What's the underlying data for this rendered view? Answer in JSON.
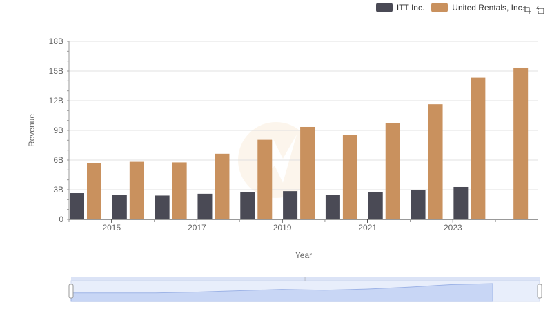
{
  "legend": {
    "items": [
      {
        "label": "ITT Inc.",
        "color": "#4a4a55"
      },
      {
        "label": "United Rentals, Inc.",
        "color": "#c9915e"
      }
    ]
  },
  "toolbox": {
    "zoom_icon": "zoom-icon",
    "restore_icon": "restore-icon"
  },
  "chart_data": {
    "type": "bar",
    "xlabel": "Year",
    "ylabel": "Revenue",
    "categories": [
      "2014",
      "2015",
      "2016",
      "2017",
      "2018",
      "2019",
      "2020",
      "2021",
      "2022",
      "2023",
      "2024"
    ],
    "x_tick_labels": [
      "2015",
      "2017",
      "2019",
      "2021",
      "2023"
    ],
    "y_tick_labels": [
      "0",
      "3B",
      "6B",
      "9B",
      "12B",
      "15B",
      "18B"
    ],
    "ylim": [
      0,
      18000000000
    ],
    "grid": true,
    "legend_position": "top-right",
    "series": [
      {
        "name": "ITT Inc.",
        "color": "#4a4a55",
        "values": [
          2650000000,
          2490000000,
          2410000000,
          2590000000,
          2750000000,
          2850000000,
          2480000000,
          2770000000,
          2990000000,
          3280000000,
          null
        ]
      },
      {
        "name": "United Rentals, Inc.",
        "color": "#c9915e",
        "values": [
          5690000000,
          5820000000,
          5760000000,
          6640000000,
          8050000000,
          9350000000,
          8530000000,
          9720000000,
          11640000000,
          14330000000,
          15350000000
        ]
      }
    ]
  }
}
